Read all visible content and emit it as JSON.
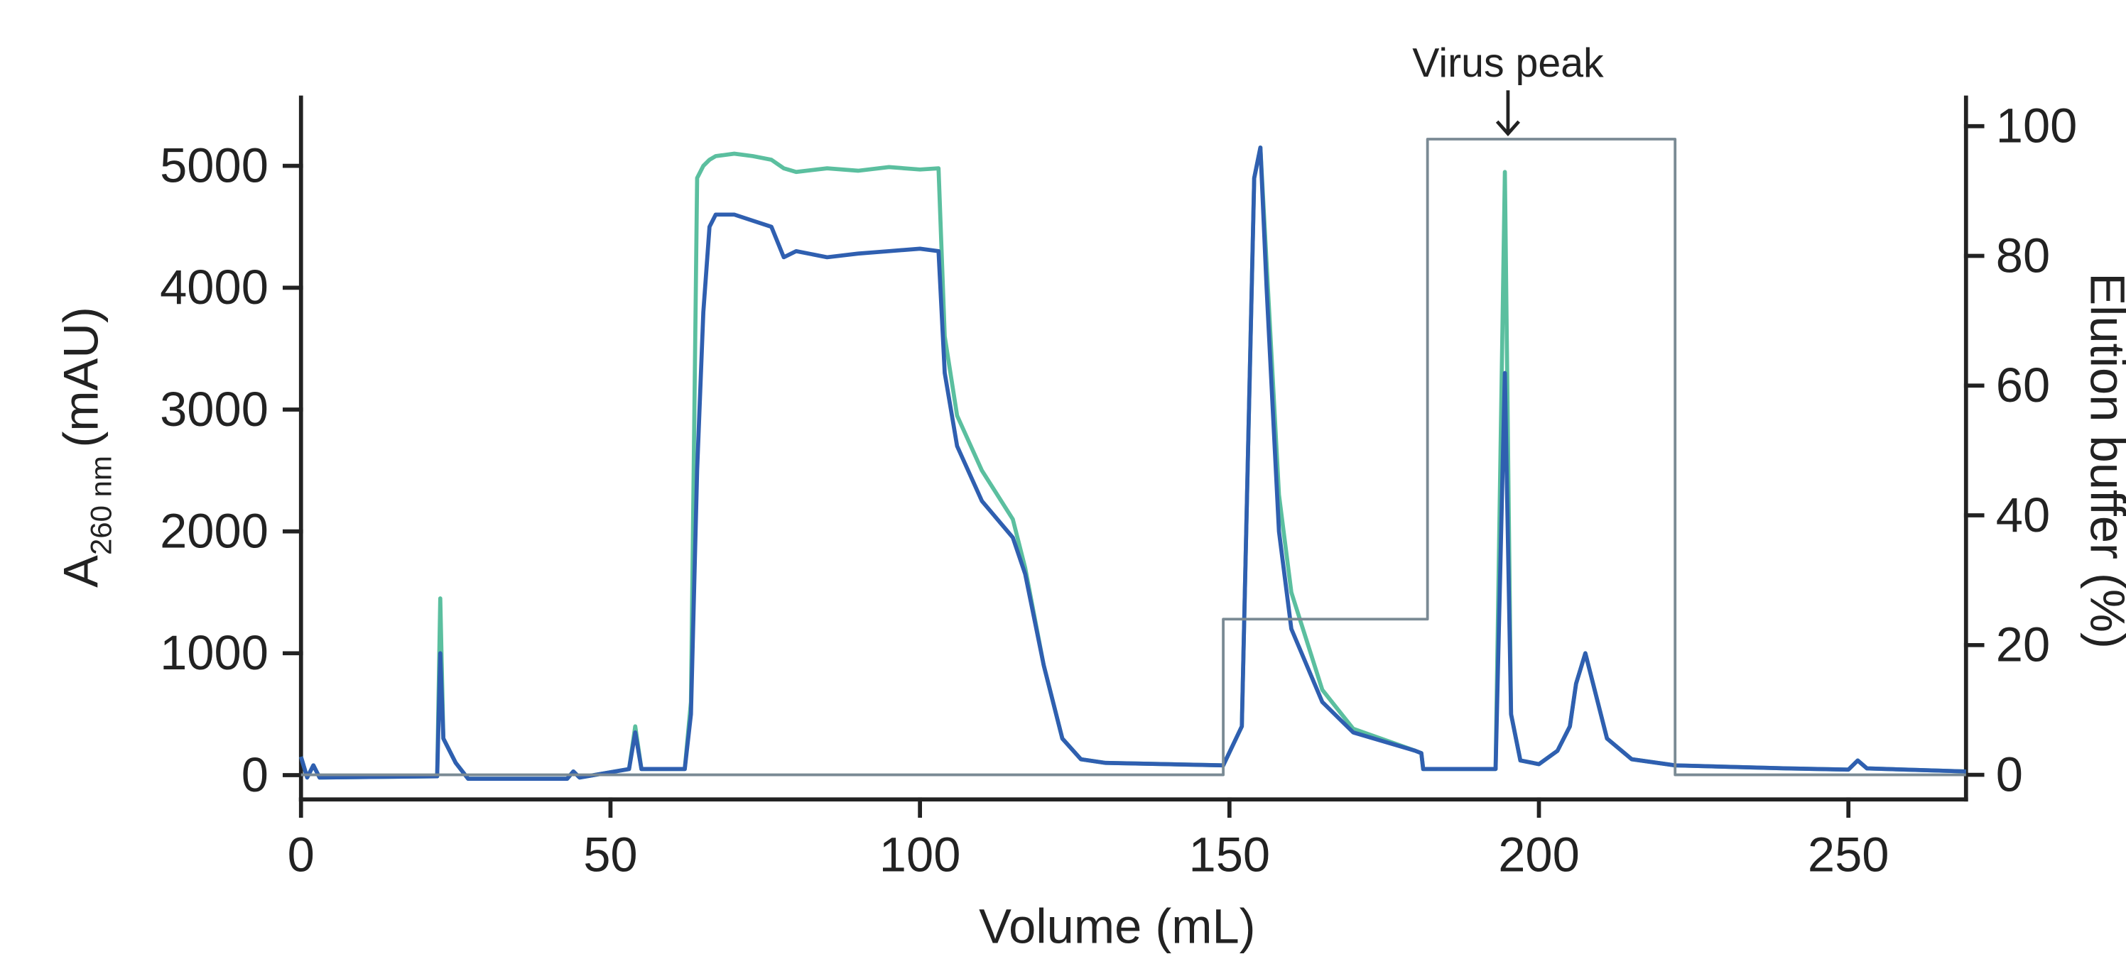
{
  "chart_data": {
    "type": "line",
    "xlabel": "Volume (mL)",
    "ylabel": [
      "A",
      "260 nm",
      "(mAU)"
    ],
    "y2label": "Elution buffer (%)",
    "annotation": {
      "text": "Virus peak",
      "x": 195,
      "y2": 98
    },
    "xlim": [
      0,
      269
    ],
    "xticks": [
      0,
      50,
      100,
      150,
      200,
      250
    ],
    "ylim": [
      -200,
      5560
    ],
    "yticks": [
      0,
      1000,
      2000,
      3000,
      4000,
      5000
    ],
    "y2lim": [
      -3.8,
      104.4
    ],
    "y2ticks": [
      0,
      20,
      40,
      60,
      80,
      100
    ],
    "grid": false,
    "x": [
      0,
      1,
      2,
      3,
      22,
      22.5,
      23,
      25,
      27,
      43,
      44,
      45,
      53,
      54,
      55,
      62,
      63,
      64,
      65,
      66,
      67,
      70,
      73,
      76,
      78,
      80,
      85,
      90,
      95,
      100,
      103,
      104,
      106,
      110,
      115,
      117,
      120,
      123,
      126,
      130,
      149,
      152,
      154,
      155,
      156,
      158,
      160,
      165,
      170,
      180,
      181,
      181.3,
      185,
      193,
      194.5,
      195.5,
      197,
      200,
      203,
      205,
      206,
      207.5,
      209,
      211,
      215,
      222,
      240,
      250,
      251.5,
      253,
      269
    ],
    "series": [
      {
        "color": "#5bbf9f",
        "values": [
          150,
          -20,
          80,
          -20,
          -10,
          1450,
          300,
          100,
          -30,
          -30,
          30,
          -20,
          50,
          400,
          50,
          50,
          600,
          4900,
          5000,
          5050,
          5080,
          5100,
          5080,
          5050,
          4980,
          4950,
          4980,
          4960,
          4990,
          4970,
          4980,
          3600,
          2950,
          2500,
          2100,
          1700,
          900,
          300,
          130,
          100,
          80,
          400,
          4900,
          5150,
          4200,
          2300,
          1500,
          700,
          380,
          200,
          180,
          50,
          50,
          50,
          4950,
          500,
          120,
          90,
          200,
          400,
          750,
          1000,
          700,
          300,
          130,
          80,
          55,
          45,
          120,
          55,
          30
        ]
      },
      {
        "color": "#2f5fb0",
        "values": [
          150,
          -20,
          80,
          -20,
          -10,
          1000,
          300,
          100,
          -30,
          -30,
          30,
          -20,
          50,
          350,
          50,
          50,
          500,
          2500,
          3800,
          4500,
          4600,
          4600,
          4550,
          4500,
          4250,
          4300,
          4250,
          4280,
          4300,
          4320,
          4300,
          3300,
          2700,
          2250,
          1950,
          1650,
          900,
          300,
          130,
          100,
          80,
          400,
          4900,
          5150,
          4000,
          2000,
          1200,
          600,
          350,
          200,
          180,
          50,
          50,
          50,
          3300,
          500,
          120,
          90,
          200,
          400,
          750,
          1000,
          700,
          300,
          130,
          80,
          55,
          45,
          120,
          55,
          30
        ]
      },
      {
        "color": "#7a8a94",
        "axis": "y2",
        "x": [
          0,
          149,
          149,
          182,
          182,
          222,
          222,
          269
        ],
        "values": [
          0,
          0,
          24,
          24,
          98,
          98,
          0,
          0
        ]
      }
    ]
  }
}
